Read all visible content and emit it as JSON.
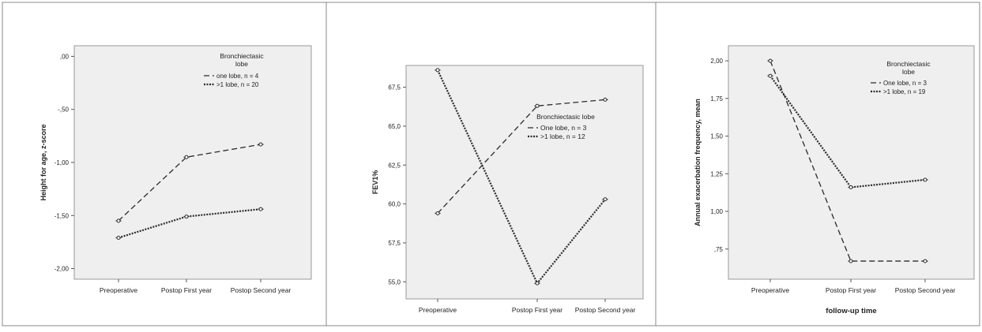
{
  "chart_data": [
    {
      "type": "line",
      "categories": [
        "Preoperative",
        "Postop First year",
        "Postop Second year"
      ],
      "ylabel": "Height for age, z-score",
      "xlabel": "",
      "ylim": [
        -2.1,
        0.1
      ],
      "ytick_values": [
        0,
        -0.5,
        -1,
        -1.5,
        -2
      ],
      "ytick_labels": [
        ",00",
        "-,50",
        "-1,00",
        "-1,50",
        "-2,00"
      ],
      "legend_title": [
        "Bronchiectasic",
        "lobe"
      ],
      "legend_position": "top-right",
      "series": [
        {
          "name": "one lobe, n = 4",
          "style": "dashed",
          "values": [
            -1.55,
            -0.95,
            -0.83
          ]
        },
        {
          "name": ">1 lobe, n = 20",
          "style": "dotted",
          "values": [
            -1.71,
            -1.51,
            -1.44
          ]
        }
      ]
    },
    {
      "type": "line",
      "categories": [
        "Preoperative",
        "Postop First year",
        "Postop Second year"
      ],
      "ylabel": "FEV1%",
      "xlabel": "",
      "ylim": [
        53.9,
        68.9
      ],
      "ytick_values": [
        67.5,
        65,
        62.5,
        60,
        57.5,
        55
      ],
      "ytick_labels": [
        "67,5",
        "65,0",
        "62,5",
        "60,0",
        "57,5",
        "55,0"
      ],
      "legend_title": [
        "Bronchiectasic lobe"
      ],
      "legend_position": "right",
      "series": [
        {
          "name": "One lobe, n = 3",
          "style": "dashed",
          "values": [
            59.4,
            66.3,
            66.7
          ]
        },
        {
          "name": ">1 lobe, n = 12",
          "style": "dotted",
          "values": [
            68.6,
            54.9,
            60.3
          ]
        }
      ]
    },
    {
      "type": "line",
      "categories": [
        "Preoperative",
        "Postop First year",
        "Postop Second year"
      ],
      "ylabel": "Annual exacerbation frequency, mean",
      "xlabel": "follow-up time",
      "ylim": [
        0.55,
        2.1
      ],
      "ytick_values": [
        2,
        1.75,
        1.5,
        1.25,
        1,
        0.75
      ],
      "ytick_labels": [
        "2,00",
        "1,75",
        "1,50",
        "1,25",
        "1,00",
        ",75"
      ],
      "legend_title": [
        "Bronchiectasic",
        "lobe"
      ],
      "legend_position": "top-right",
      "series": [
        {
          "name": "One lobe, n = 3",
          "style": "dashed",
          "values": [
            2.0,
            0.67,
            0.67
          ]
        },
        {
          "name": ">1 lobe, n = 19",
          "style": "dotted",
          "values": [
            1.9,
            1.16,
            1.21
          ]
        }
      ]
    }
  ]
}
